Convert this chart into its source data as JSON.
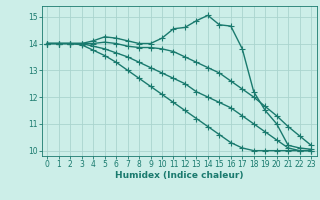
{
  "bg_color": "#cceee8",
  "grid_color": "#aad4ce",
  "line_color": "#1a7a6e",
  "line_width": 1.0,
  "marker": "+",
  "marker_size": 4,
  "marker_edge_width": 0.8,
  "xlabel": "Humidex (Indice chaleur)",
  "xlabel_fontsize": 6.5,
  "tick_fontsize": 5.5,
  "ylim": [
    9.8,
    15.4
  ],
  "xlim": [
    -0.5,
    23.5
  ],
  "yticks": [
    10,
    11,
    12,
    13,
    14,
    15
  ],
  "xticks": [
    0,
    1,
    2,
    3,
    4,
    5,
    6,
    7,
    8,
    9,
    10,
    11,
    12,
    13,
    14,
    15,
    16,
    17,
    18,
    19,
    20,
    21,
    22,
    23
  ],
  "series": [
    [
      14.0,
      14.0,
      14.0,
      14.0,
      14.1,
      14.25,
      14.2,
      14.1,
      14.0,
      14.0,
      14.2,
      14.55,
      14.6,
      14.85,
      15.05,
      14.7,
      14.65,
      13.8,
      12.2,
      11.5,
      11.0,
      10.2,
      10.1,
      10.05
    ],
    [
      14.0,
      14.0,
      14.0,
      14.0,
      14.0,
      14.05,
      14.0,
      13.9,
      13.85,
      13.85,
      13.8,
      13.7,
      13.5,
      13.3,
      13.1,
      12.9,
      12.6,
      12.3,
      12.0,
      11.65,
      11.3,
      10.9,
      10.55,
      10.2
    ],
    [
      14.0,
      14.0,
      14.0,
      14.0,
      13.9,
      13.8,
      13.65,
      13.5,
      13.3,
      13.1,
      12.9,
      12.7,
      12.5,
      12.2,
      12.0,
      11.8,
      11.6,
      11.3,
      11.0,
      10.7,
      10.4,
      10.1,
      10.0,
      10.0
    ],
    [
      14.0,
      14.0,
      14.0,
      13.95,
      13.75,
      13.55,
      13.3,
      13.0,
      12.7,
      12.4,
      12.1,
      11.8,
      11.5,
      11.2,
      10.9,
      10.6,
      10.3,
      10.1,
      10.0,
      10.0,
      10.0,
      10.0,
      10.0,
      10.0
    ]
  ]
}
